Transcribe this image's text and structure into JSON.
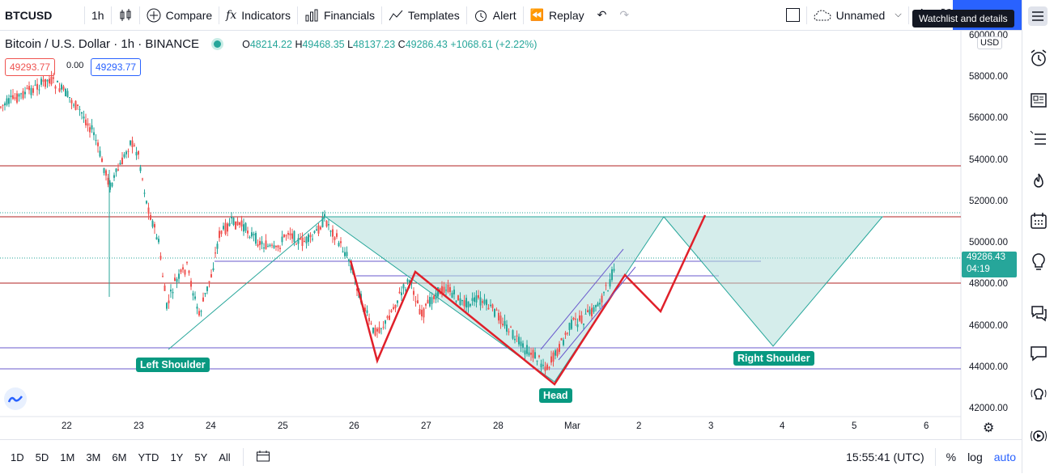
{
  "toolbar": {
    "symbol": "BTCUSD",
    "interval": "1h",
    "compare": "Compare",
    "indicators": "Indicators",
    "financials": "Financials",
    "templates": "Templates",
    "alert": "Alert",
    "replay": "Replay",
    "layout_name": "Unnamed",
    "tooltip": "Watchlist and details"
  },
  "legend": {
    "title": "Bitcoin / U.S. Dollar · 1h · BINANCE",
    "o_label": "O",
    "o": "48214.22",
    "h_label": "H",
    "h": "49468.35",
    "l_label": "L",
    "l": "48137.23",
    "c_label": "C",
    "c": "49286.43",
    "change": "+1068.61 (+2.22%)",
    "sell": "49293.77",
    "spread": "0.00",
    "buy": "49293.77"
  },
  "price_axis": {
    "currency": "USD",
    "ticks": [
      "60000.00",
      "58000.00",
      "56000.00",
      "54000.00",
      "52000.00",
      "50000.00",
      "48000.00",
      "46000.00",
      "44000.00",
      "42000.00"
    ],
    "last_price": "49286.43",
    "countdown": "04:19"
  },
  "time_axis": {
    "ticks": [
      "22",
      "23",
      "24",
      "25",
      "26",
      "27",
      "28",
      "Mar",
      "2",
      "3",
      "4",
      "5",
      "6"
    ]
  },
  "annotations": {
    "left_shoulder": "Left Shoulder",
    "head": "Head",
    "right_shoulder": "Right Shoulder"
  },
  "bottom": {
    "ranges": [
      "1D",
      "5D",
      "1M",
      "3M",
      "6M",
      "YTD",
      "1Y",
      "5Y",
      "All"
    ],
    "clock": "15:55:41 (UTC)",
    "percent": "%",
    "log": "log",
    "auto": "auto"
  },
  "colors": {
    "up": "#26a69a",
    "down": "#ef5350",
    "red_line": "#e0202a",
    "pattern_fill": "#b2dfdb",
    "hline_red": "#b22222",
    "hline_purple": "#6a5acd"
  }
}
